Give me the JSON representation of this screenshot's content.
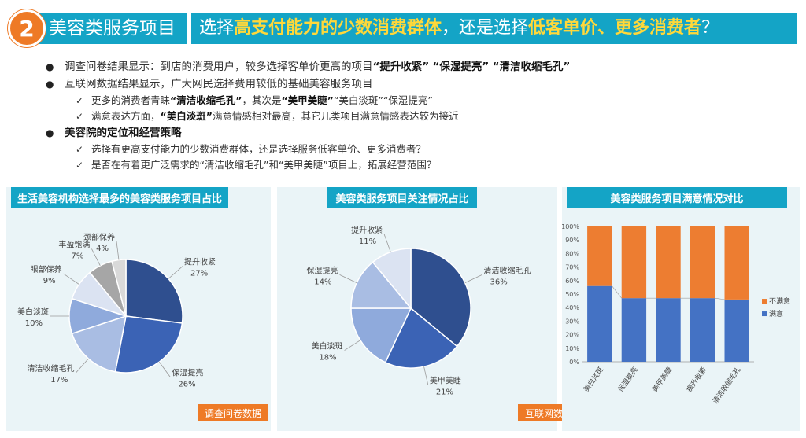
{
  "header": {
    "number": "2",
    "section": "美容类服务项目",
    "title_parts": [
      {
        "text": "选择",
        "hl": false
      },
      {
        "text": "高支付能力的少数消费群体",
        "hl": true
      },
      {
        "text": "，还是选择",
        "hl": false
      },
      {
        "text": "低客单价、更多消费者",
        "hl": true
      },
      {
        "text": "？",
        "hl": false
      }
    ]
  },
  "bullets": {
    "b1": {
      "text": "调查问卷结果显示：到店的消费用户，较多选择客单价更高的项目",
      "q1": "“提升收紧”",
      "q2": "“保湿提亮”",
      "q3": "“清洁收缩毛孔”"
    },
    "b2": {
      "text": "互联网数据结果显示，广大网民选择费用较低的基础美容服务项目"
    },
    "b2a": {
      "pre": "更多的消费者青睐",
      "s1": "“清洁收缩毛孔”",
      "mid": "，其次是",
      "s2": "“美甲美睫”",
      "rest": "“美白淡斑”“保湿提亮”"
    },
    "b2b": {
      "pre": "满意表达方面，",
      "s1": "“美白淡斑”",
      "rest": "满意情感相对最高，其它几类项目满意情感表达较为接近"
    },
    "b3": {
      "text": "美容院的定位和经营策略"
    },
    "b3a": {
      "text": "选择有更高支付能力的少数消费群体，还是选择服务低客单价、更多消费者？"
    },
    "b3b": {
      "text": "是否在有着更广泛需求的“清洁收缩毛孔”和“美甲美睫”项目上，拓展经营范围？"
    }
  },
  "panels": {
    "left": {
      "title": "生活美容机构选择最多的美容类服务项目占比",
      "source": "调查问卷数据"
    },
    "middle": {
      "title": "美容类服务项目关注情况占比",
      "source": "互联网数据"
    },
    "right": {
      "title": "美容类服务项目满意情况对比"
    }
  },
  "colors": {
    "accent": "#14a4c6",
    "orange": "#ee7a26",
    "satisfied": "#4472c4",
    "unsatisfied": "#ed7d31"
  },
  "chart_data": [
    {
      "type": "pie",
      "title": "生活美容机构选择最多的美容类服务项目占比",
      "slices": [
        {
          "label": "提升收紧",
          "value": 27,
          "pct": "27%",
          "color": "#2f4f8f"
        },
        {
          "label": "保湿提亮",
          "value": 26,
          "pct": "26%",
          "color": "#3b63b5"
        },
        {
          "label": "清洁收缩毛孔",
          "value": 17,
          "pct": "17%",
          "color": "#a9bde3"
        },
        {
          "label": "美白淡斑",
          "value": 10,
          "pct": "10%",
          "color": "#8faadc"
        },
        {
          "label": "眼部保养",
          "value": 9,
          "pct": "9%",
          "color": "#dbe3f2"
        },
        {
          "label": "丰盈饱满",
          "value": 7,
          "pct": "7%",
          "color": "#a6a6a6"
        },
        {
          "label": "颈部保养",
          "value": 4,
          "pct": "4%",
          "color": "#d9d9d9"
        }
      ]
    },
    {
      "type": "pie",
      "title": "美容类服务项目关注情况占比",
      "slices": [
        {
          "label": "清洁收缩毛孔",
          "value": 36,
          "pct": "36%",
          "color": "#2f4f8f"
        },
        {
          "label": "美甲美睫",
          "value": 21,
          "pct": "21%",
          "color": "#3b63b5"
        },
        {
          "label": "美白淡斑",
          "value": 18,
          "pct": "18%",
          "color": "#8faadc"
        },
        {
          "label": "保湿提亮",
          "value": 14,
          "pct": "14%",
          "color": "#a9bde3"
        },
        {
          "label": "提升收紧",
          "value": 11,
          "pct": "11%",
          "color": "#dbe3f2"
        }
      ]
    },
    {
      "type": "bar",
      "stacked": true,
      "percent": true,
      "title": "美容类服务项目满意情况对比",
      "categories": [
        "美白淡斑",
        "保湿提亮",
        "美甲美睫",
        "提升收紧",
        "清洁收缩毛孔"
      ],
      "series": [
        {
          "name": "满意",
          "values": [
            56,
            47,
            47,
            47,
            46
          ],
          "color": "#4472c4"
        },
        {
          "name": "不满意",
          "values": [
            44,
            53,
            53,
            53,
            54
          ],
          "color": "#ed7d31"
        }
      ],
      "yticks": [
        "0%",
        "10%",
        "20%",
        "30%",
        "40%",
        "50%",
        "60%",
        "70%",
        "80%",
        "90%",
        "100%"
      ],
      "legend": "right"
    }
  ]
}
